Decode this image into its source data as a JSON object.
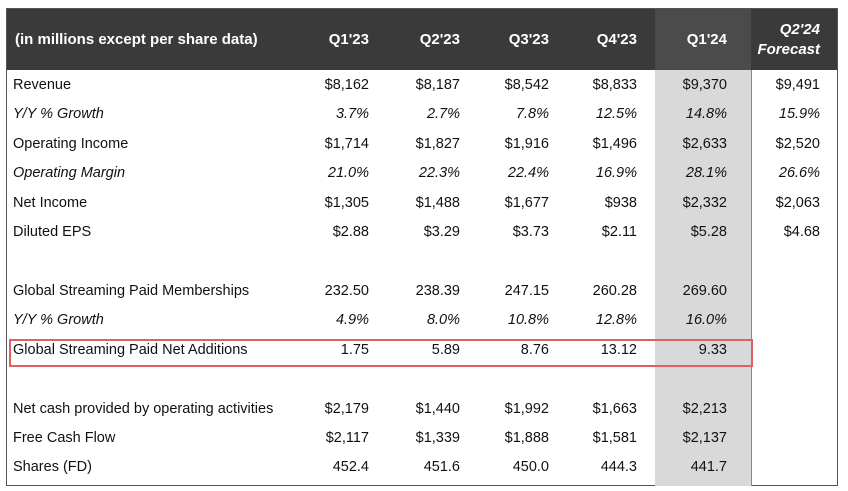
{
  "header": {
    "label": "(in millions except per share data)",
    "cols": [
      "Q1'23",
      "Q2'23",
      "Q3'23",
      "Q4'23",
      "Q1'24"
    ],
    "forecast_line1": "Q2'24",
    "forecast_line2": "Forecast"
  },
  "rows": {
    "revenue": {
      "label": "Revenue",
      "v": [
        "$8,162",
        "$8,187",
        "$8,542",
        "$8,833",
        "$9,370",
        "$9,491"
      ]
    },
    "rev_growth": {
      "label": "Y/Y % Growth",
      "v": [
        "3.7%",
        "2.7%",
        "7.8%",
        "12.5%",
        "14.8%",
        "15.9%"
      ]
    },
    "op_income": {
      "label": "Operating Income",
      "v": [
        "$1,714",
        "$1,827",
        "$1,916",
        "$1,496",
        "$2,633",
        "$2,520"
      ]
    },
    "op_margin": {
      "label": "Operating Margin",
      "v": [
        "21.0%",
        "22.3%",
        "22.4%",
        "16.9%",
        "28.1%",
        "26.6%"
      ]
    },
    "net_income": {
      "label": "Net Income",
      "v": [
        "$1,305",
        "$1,488",
        "$1,677",
        "$938",
        "$2,332",
        "$2,063"
      ]
    },
    "eps": {
      "label": "Diluted EPS",
      "v": [
        "$2.88",
        "$3.29",
        "$3.73",
        "$2.11",
        "$5.28",
        "$4.68"
      ]
    },
    "members": {
      "label": "Global Streaming Paid Memberships",
      "v": [
        "232.50",
        "238.39",
        "247.15",
        "260.28",
        "269.60",
        ""
      ]
    },
    "mem_growth": {
      "label": "Y/Y % Growth",
      "v": [
        "4.9%",
        "8.0%",
        "10.8%",
        "12.8%",
        "16.0%",
        ""
      ]
    },
    "net_adds": {
      "label": "Global Streaming Paid Net Additions",
      "v": [
        "1.75",
        "5.89",
        "8.76",
        "13.12",
        "9.33",
        ""
      ]
    },
    "op_cash": {
      "label": "Net cash provided by operating activities",
      "v": [
        "$2,179",
        "$1,440",
        "$1,992",
        "$1,663",
        "$2,213",
        ""
      ]
    },
    "fcf": {
      "label": "Free Cash Flow",
      "v": [
        "$2,117",
        "$1,339",
        "$1,888",
        "$1,581",
        "$2,137",
        ""
      ]
    },
    "shares": {
      "label": "Shares (FD)",
      "v": [
        "452.4",
        "451.6",
        "450.0",
        "444.3",
        "441.7",
        ""
      ]
    }
  },
  "colors": {
    "header_bg": "#3a3a3a",
    "highlight_border": "#e06060",
    "q1_shade": "#d9d9d9"
  }
}
